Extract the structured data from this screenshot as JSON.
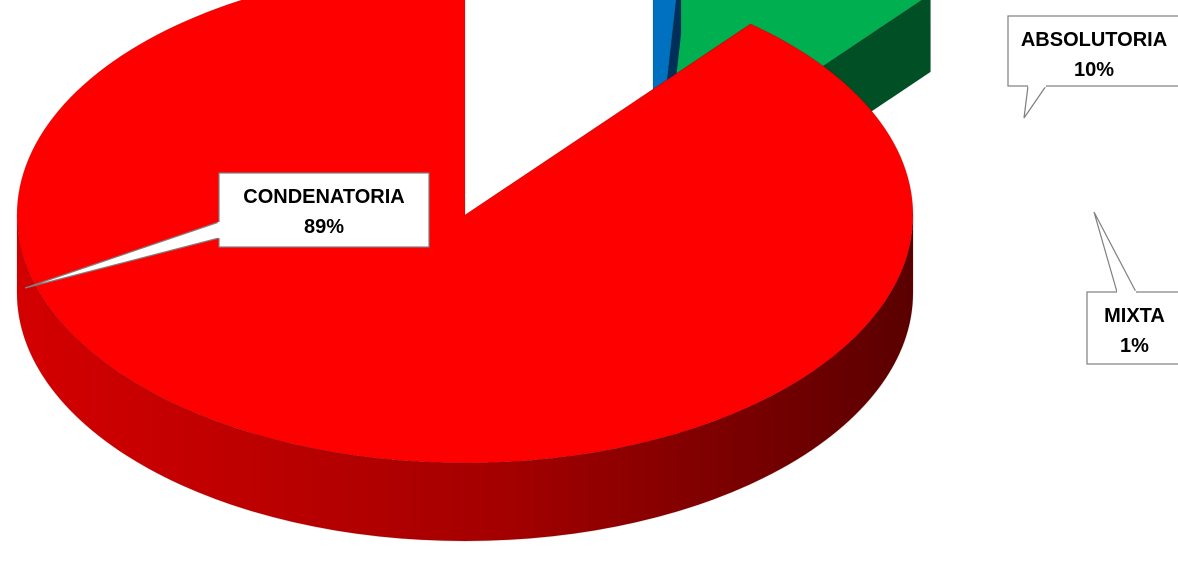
{
  "chart_data": {
    "type": "pie",
    "title": "",
    "three_d": true,
    "slices": [
      {
        "label": "CONDENATORIA",
        "percent_label": "89%",
        "value": 89,
        "color": "#ff0000"
      },
      {
        "label": "ABSOLUTORIA",
        "percent_label": "10%",
        "value": 10,
        "color": "#00b050"
      },
      {
        "label": "MIXTA",
        "percent_label": "1%",
        "value": 1,
        "color": "#0070c0"
      }
    ],
    "legend": "none",
    "data_labels": "callouts"
  }
}
